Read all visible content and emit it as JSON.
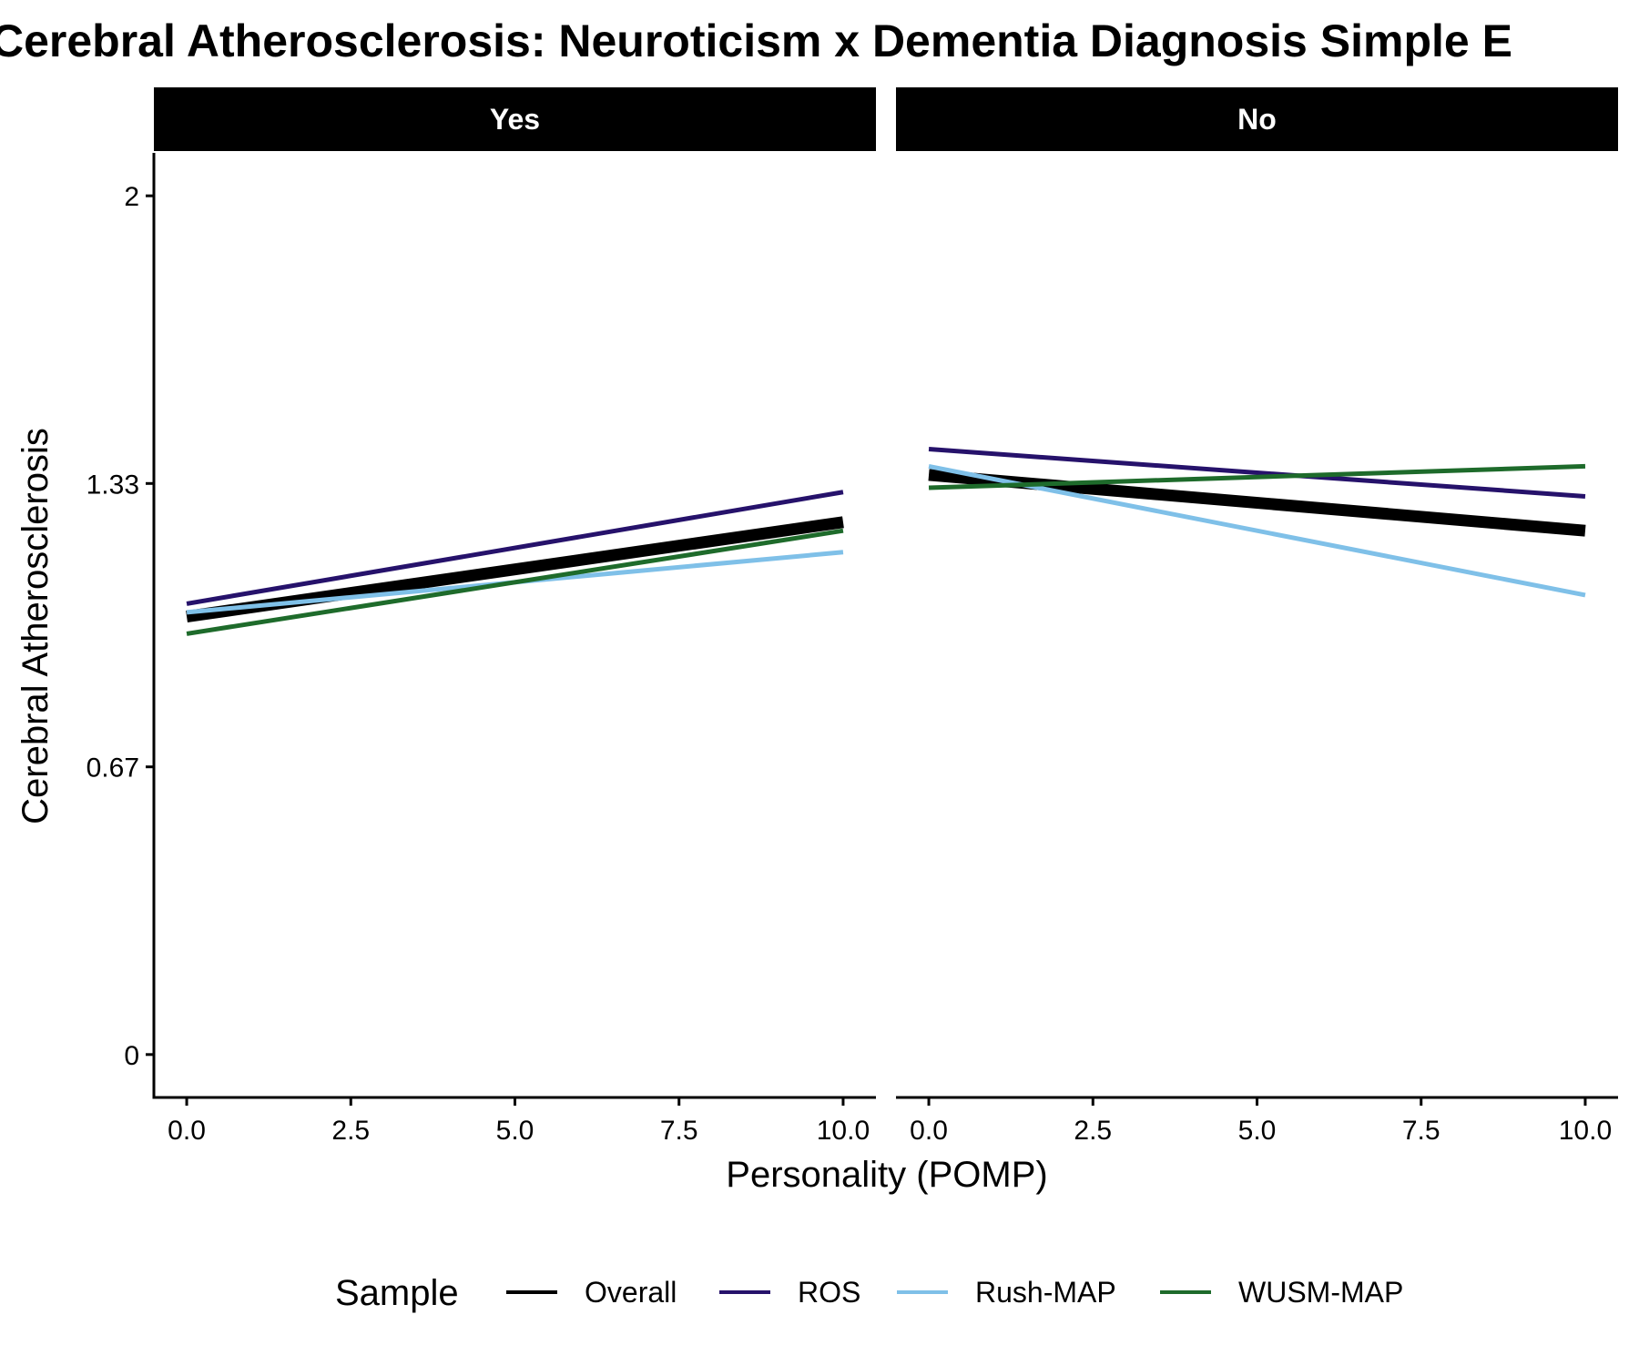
{
  "chart_data": {
    "type": "line",
    "title": "Cerebral Atherosclerosis: Neuroticism x Dementia Diagnosis Simple E",
    "xlabel": "Personality (POMP)",
    "ylabel": "Cerebral Atherosclerosis",
    "xlim": [
      -0.5,
      10.5
    ],
    "ylim": [
      -0.1,
      2.1
    ],
    "x_ticks": [
      0,
      2.5,
      5,
      7.5,
      10
    ],
    "x_tick_labels": [
      "0.0",
      "2.5",
      "5.0",
      "7.5",
      "10.0"
    ],
    "y_ticks": [
      0,
      0.67,
      1.33,
      2
    ],
    "y_tick_labels": [
      "0",
      "0.67",
      "1.33",
      "2"
    ],
    "grid": false,
    "legend": {
      "title": "Sample",
      "position": "bottom",
      "entries": [
        "Overall",
        "ROS",
        "Rush-MAP",
        "WUSM-MAP"
      ]
    },
    "colors": {
      "Overall": "#000000",
      "ROS": "#26126b",
      "Rush-MAP": "#7fc0e8",
      "WUSM-MAP": "#1e6b2b"
    },
    "panels": [
      {
        "label": "Yes",
        "series": [
          {
            "name": "Overall",
            "x": [
              0,
              10
            ],
            "y": [
              1.02,
              1.24
            ]
          },
          {
            "name": "ROS",
            "x": [
              0,
              10
            ],
            "y": [
              1.05,
              1.31
            ]
          },
          {
            "name": "Rush-MAP",
            "x": [
              0,
              10
            ],
            "y": [
              1.03,
              1.17
            ]
          },
          {
            "name": "WUSM-MAP",
            "x": [
              0,
              10
            ],
            "y": [
              0.98,
              1.22
            ]
          }
        ]
      },
      {
        "label": "No",
        "series": [
          {
            "name": "Overall",
            "x": [
              0,
              10
            ],
            "y": [
              1.35,
              1.22
            ]
          },
          {
            "name": "ROS",
            "x": [
              0,
              10
            ],
            "y": [
              1.41,
              1.3
            ]
          },
          {
            "name": "Rush-MAP",
            "x": [
              0,
              10
            ],
            "y": [
              1.37,
              1.07
            ]
          },
          {
            "name": "WUSM-MAP",
            "x": [
              0,
              10
            ],
            "y": [
              1.32,
              1.37
            ]
          }
        ]
      }
    ]
  }
}
